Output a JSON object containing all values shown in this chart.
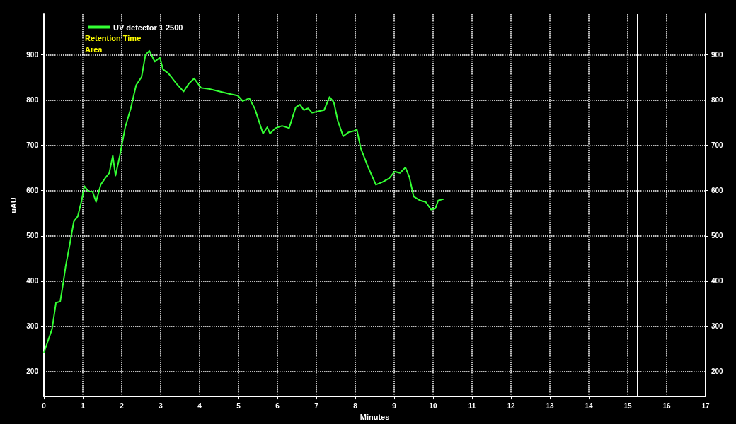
{
  "chart_data": {
    "type": "line",
    "xlabel": "Minutes",
    "ylabel": "uAU",
    "x": [
      0,
      0.21,
      0.31,
      0.42,
      0.49,
      0.56,
      0.66,
      0.77,
      0.87,
      0.97,
      1.04,
      1.15,
      1.25,
      1.34,
      1.46,
      1.57,
      1.68,
      1.77,
      1.84,
      1.95,
      2.09,
      2.23,
      2.37,
      2.51,
      2.61,
      2.71,
      2.85,
      2.98,
      3.06,
      3.2,
      3.41,
      3.59,
      3.72,
      3.86,
      4.04,
      4.24,
      4.52,
      4.8,
      4.98,
      5.11,
      5.28,
      5.42,
      5.63,
      5.74,
      5.81,
      5.95,
      6.12,
      6.3,
      6.47,
      6.58,
      6.68,
      6.79,
      6.89,
      7.03,
      7.2,
      7.34,
      7.45,
      7.55,
      7.69,
      7.83,
      7.97,
      8.04,
      8.14,
      8.32,
      8.53,
      8.7,
      8.87,
      9.01,
      9.15,
      9.29,
      9.39,
      9.5,
      9.67,
      9.81,
      9.95,
      10.06,
      10.13,
      10.26
    ],
    "series": [
      {
        "name": "UV detector 1 2500",
        "color": "#33ff33",
        "values": [
          242,
          294,
          352,
          355,
          392,
          433,
          479,
          532,
          543,
          578,
          610,
          598,
          598,
          575,
          613,
          627,
          639,
          677,
          633,
          677,
          740,
          781,
          833,
          851,
          900,
          909,
          885,
          894,
          868,
          859,
          836,
          819,
          836,
          848,
          827,
          825,
          819,
          813,
          810,
          798,
          804,
          781,
          726,
          740,
          726,
          738,
          743,
          738,
          784,
          790,
          778,
          782,
          772,
          775,
          778,
          807,
          795,
          755,
          720,
          729,
          732,
          735,
          694,
          654,
          613,
          619,
          627,
          642,
          639,
          651,
          630,
          587,
          578,
          575,
          558,
          561,
          578,
          581
        ]
      }
    ],
    "xlim": [
      0,
      17
    ],
    "xticks": [
      0,
      1,
      2,
      3,
      4,
      5,
      6,
      7,
      8,
      9,
      10,
      11,
      12,
      13,
      14,
      15,
      16,
      17
    ],
    "ylim": [
      145,
      990
    ],
    "yticks": [
      200,
      300,
      400,
      500,
      600,
      700,
      800,
      900
    ],
    "y2lim": [
      145,
      990
    ],
    "y2ticks": [
      200,
      300,
      400,
      500,
      600,
      700,
      800,
      900
    ],
    "ref_lines": [
      {
        "axis": "x",
        "value": 15.25,
        "color": "#ffffff",
        "line_style": "solid"
      }
    ],
    "annotations": [
      "Retention Time",
      "Area"
    ],
    "grid": true,
    "legend": "top left",
    "marker": "none",
    "line_style": "solid"
  }
}
